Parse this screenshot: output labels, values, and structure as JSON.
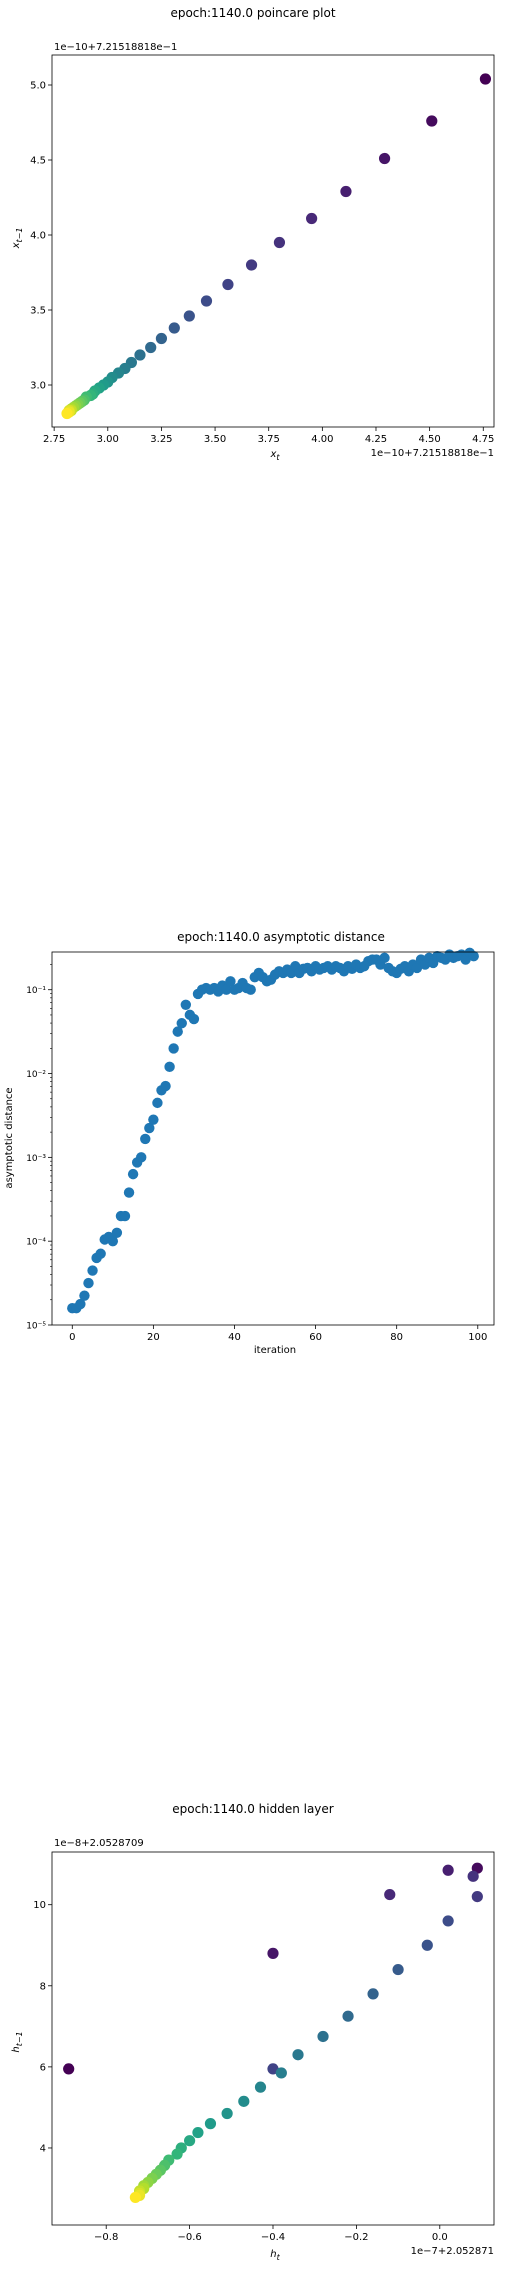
{
  "chart_data": [
    {
      "type": "scatter",
      "title": "epoch:1140.0 poincare plot",
      "xlabel": "x_t",
      "ylabel": "x_{t-1}",
      "x_offset_label": "1e−10+7.21518818e−1",
      "y_offset_label": "1e−10+7.21518818e−1",
      "xlim": [
        2.74,
        4.8
      ],
      "ylim": [
        2.72,
        5.2
      ],
      "xticks": [
        2.75,
        3.0,
        3.25,
        3.5,
        3.75,
        4.0,
        4.25,
        4.5,
        4.75
      ],
      "xtick_labels": [
        "2.75",
        "3.00",
        "3.25",
        "3.50",
        "3.75",
        "4.00",
        "4.25",
        "4.50",
        "4.75"
      ],
      "yticks": [
        3.0,
        3.5,
        4.0,
        4.5,
        5.0
      ],
      "ytick_labels": [
        "3.0",
        "3.5",
        "4.0",
        "4.5",
        "5.0"
      ],
      "colormap": "viridis",
      "color_encoding": "point index (dark purple = early, yellow = late)",
      "x": [
        4.76,
        4.51,
        4.29,
        4.11,
        3.95,
        3.8,
        3.67,
        3.56,
        3.46,
        3.38,
        3.31,
        3.25,
        3.2,
        3.15,
        3.11,
        3.08,
        3.05,
        3.02,
        3.0,
        2.98,
        2.96,
        2.94,
        2.93,
        2.92,
        2.9,
        2.89,
        2.88,
        2.87,
        2.86,
        2.85,
        2.84,
        2.83,
        2.83,
        2.82,
        2.82,
        2.81
      ],
      "y": [
        5.04,
        4.76,
        4.51,
        4.29,
        4.11,
        3.95,
        3.8,
        3.67,
        3.56,
        3.46,
        3.38,
        3.31,
        3.25,
        3.2,
        3.15,
        3.11,
        3.08,
        3.05,
        3.02,
        3.0,
        2.98,
        2.96,
        2.94,
        2.93,
        2.92,
        2.9,
        2.89,
        2.88,
        2.87,
        2.86,
        2.85,
        2.84,
        2.83,
        2.83,
        2.82,
        2.81
      ]
    },
    {
      "type": "scatter",
      "title": "epoch:1140.0 asymptotic distance",
      "xlabel": "iteration",
      "ylabel": "asymptotic distance",
      "yscale": "log",
      "xlim": [
        -5,
        104
      ],
      "ylim_log10": [
        -5,
        -0.55
      ],
      "xticks": [
        0,
        20,
        40,
        60,
        80,
        100
      ],
      "xtick_labels": [
        "0",
        "20",
        "40",
        "60",
        "80",
        "100"
      ],
      "ytick_exponents": [
        -5,
        -4,
        -3,
        -2,
        -1
      ],
      "ytick_labels": [
        "10⁻⁵",
        "10⁻⁴",
        "10⁻³",
        "10⁻²",
        "10⁻¹"
      ],
      "color": "#1f77b4",
      "x": [
        0,
        1,
        2,
        3,
        4,
        5,
        6,
        7,
        8,
        9,
        10,
        11,
        12,
        13,
        14,
        15,
        16,
        17,
        18,
        19,
        20,
        21,
        22,
        23,
        24,
        25,
        26,
        27,
        28,
        29,
        30,
        31,
        32,
        33,
        34,
        35,
        36,
        37,
        38,
        39,
        40,
        41,
        42,
        43,
        44,
        45,
        46,
        47,
        48,
        49,
        50,
        51,
        52,
        53,
        54,
        55,
        56,
        57,
        58,
        59,
        60,
        61,
        62,
        63,
        64,
        65,
        66,
        67,
        68,
        69,
        70,
        71,
        72,
        73,
        74,
        75,
        76,
        77,
        78,
        79,
        80,
        81,
        82,
        83,
        84,
        85,
        86,
        87,
        88,
        89,
        90,
        91,
        92,
        93,
        94,
        95,
        96,
        97,
        98,
        99
      ],
      "y_log10": [
        -4.8,
        -4.8,
        -4.75,
        -4.65,
        -4.5,
        -4.35,
        -4.2,
        -4.15,
        -3.98,
        -3.95,
        -4.0,
        -3.9,
        -3.7,
        -3.7,
        -3.42,
        -3.2,
        -3.06,
        -3.0,
        -2.78,
        -2.65,
        -2.55,
        -2.35,
        -2.2,
        -2.15,
        -1.92,
        -1.7,
        -1.5,
        -1.4,
        -1.18,
        -1.3,
        -1.35,
        -1.05,
        -1.0,
        -0.98,
        -1.0,
        -0.98,
        -1.02,
        -0.95,
        -1.0,
        -0.9,
        -1.0,
        -0.98,
        -0.92,
        -0.98,
        -1.0,
        -0.85,
        -0.8,
        -0.85,
        -0.9,
        -0.88,
        -0.82,
        -0.78,
        -0.8,
        -0.76,
        -0.8,
        -0.72,
        -0.8,
        -0.75,
        -0.74,
        -0.78,
        -0.72,
        -0.76,
        -0.74,
        -0.72,
        -0.76,
        -0.72,
        -0.74,
        -0.78,
        -0.72,
        -0.75,
        -0.7,
        -0.74,
        -0.72,
        -0.66,
        -0.64,
        -0.64,
        -0.7,
        -0.62,
        -0.74,
        -0.78,
        -0.8,
        -0.75,
        -0.72,
        -0.78,
        -0.7,
        -0.74,
        -0.64,
        -0.7,
        -0.62,
        -0.68,
        -0.6,
        -0.62,
        -0.64,
        -0.58,
        -0.62,
        -0.6,
        -0.58,
        -0.64,
        -0.56,
        -0.6
      ]
    },
    {
      "type": "scatter",
      "title": "epoch:1140.0 hidden layer",
      "xlabel": "h_t",
      "ylabel": "h_{t-1}",
      "x_offset_label": "1e−7+2.052871",
      "y_offset_label": "1e−8+2.0528709",
      "xlim": [
        -0.93,
        0.13
      ],
      "ylim": [
        2.1,
        11.3
      ],
      "xticks": [
        -0.8,
        -0.6,
        -0.4,
        -0.2,
        0.0
      ],
      "xtick_labels": [
        "−0.8",
        "−0.6",
        "−0.4",
        "−0.2",
        "0.0"
      ],
      "yticks": [
        4,
        6,
        8,
        10
      ],
      "ytick_labels": [
        "4",
        "6",
        "8",
        "10"
      ],
      "colormap": "viridis",
      "color_encoding": "point index (dark purple = early, yellow = late)",
      "x": [
        -0.89,
        0.09,
        -0.4,
        0.02,
        -0.12,
        0.08,
        0.09,
        -0.4,
        0.02,
        -0.03,
        -0.1,
        -0.16,
        -0.22,
        -0.28,
        -0.34,
        -0.38,
        -0.43,
        -0.47,
        -0.51,
        -0.55,
        -0.58,
        -0.6,
        -0.62,
        -0.63,
        -0.65,
        -0.66,
        -0.67,
        -0.68,
        -0.69,
        -0.7,
        -0.71,
        -0.71,
        -0.72,
        -0.72,
        -0.72,
        -0.73
      ],
      "y": [
        5.95,
        10.9,
        8.8,
        10.85,
        10.25,
        10.7,
        10.2,
        5.95,
        9.6,
        9.0,
        8.4,
        7.8,
        7.25,
        6.75,
        6.3,
        5.85,
        5.5,
        5.15,
        4.85,
        4.6,
        4.38,
        4.18,
        4.0,
        3.85,
        3.7,
        3.57,
        3.45,
        3.35,
        3.25,
        3.15,
        3.07,
        3.0,
        2.94,
        2.88,
        2.83,
        2.78
      ]
    }
  ]
}
